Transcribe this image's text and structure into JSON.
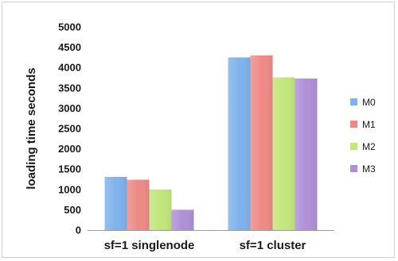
{
  "chart_data": {
    "type": "bar",
    "title": "",
    "xlabel": "",
    "ylabel": "loading time seconds",
    "ylim": [
      0,
      5000
    ],
    "yticks": [
      0,
      500,
      1000,
      1500,
      2000,
      2500,
      3000,
      3500,
      4000,
      4500,
      5000
    ],
    "grid": false,
    "legend_position": "right",
    "categories": [
      "sf=1 singlenode",
      "sf=1 cluster"
    ],
    "series": [
      {
        "name": "M0",
        "color": "#7fb2ec",
        "values": [
          1310,
          4250
        ]
      },
      {
        "name": "M1",
        "color": "#ee8a86",
        "values": [
          1240,
          4300
        ]
      },
      {
        "name": "M2",
        "color": "#c2e67c",
        "values": [
          1000,
          3760
        ]
      },
      {
        "name": "M3",
        "color": "#ae90d6",
        "values": [
          500,
          3730
        ]
      }
    ]
  }
}
